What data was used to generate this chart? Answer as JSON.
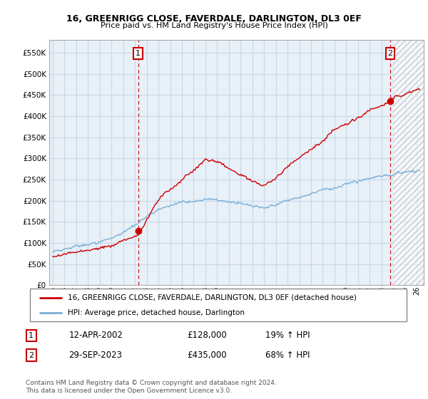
{
  "title": "16, GREENRIGG CLOSE, FAVERDALE, DARLINGTON, DL3 0EF",
  "subtitle": "Price paid vs. HM Land Registry's House Price Index (HPI)",
  "ylabel_ticks": [
    0,
    50000,
    100000,
    150000,
    200000,
    250000,
    300000,
    350000,
    400000,
    450000,
    500000,
    550000
  ],
  "ylim": [
    0,
    580000
  ],
  "x_tick_years": [
    1995,
    1996,
    1997,
    1998,
    1999,
    2000,
    2001,
    2002,
    2003,
    2004,
    2005,
    2006,
    2007,
    2008,
    2009,
    2010,
    2011,
    2012,
    2013,
    2014,
    2015,
    2016,
    2017,
    2018,
    2019,
    2020,
    2021,
    2022,
    2023,
    2024,
    2025,
    2026
  ],
  "sale1_year": 2002.28,
  "sale1_price": 128000,
  "sale2_year": 2023.75,
  "sale2_price": 435000,
  "hpi_color": "#7bafd4",
  "price_color": "#cc0000",
  "grid_color": "#c8d8e8",
  "plot_bg_color": "#e8f0f8",
  "background_color": "#ffffff",
  "legend_label_red": "16, GREENRIGG CLOSE, FAVERDALE, DARLINGTON, DL3 0EF (detached house)",
  "legend_label_blue": "HPI: Average price, detached house, Darlington",
  "annotation1_num": "1",
  "annotation1_date": "12-APR-2002",
  "annotation1_price": "£128,000",
  "annotation1_hpi": "19% ↑ HPI",
  "annotation2_num": "2",
  "annotation2_date": "29-SEP-2023",
  "annotation2_price": "£435,000",
  "annotation2_hpi": "68% ↑ HPI",
  "footer": "Contains HM Land Registry data © Crown copyright and database right 2024.\nThis data is licensed under the Open Government Licence v3.0.",
  "hatch_start_year": 2024.0
}
